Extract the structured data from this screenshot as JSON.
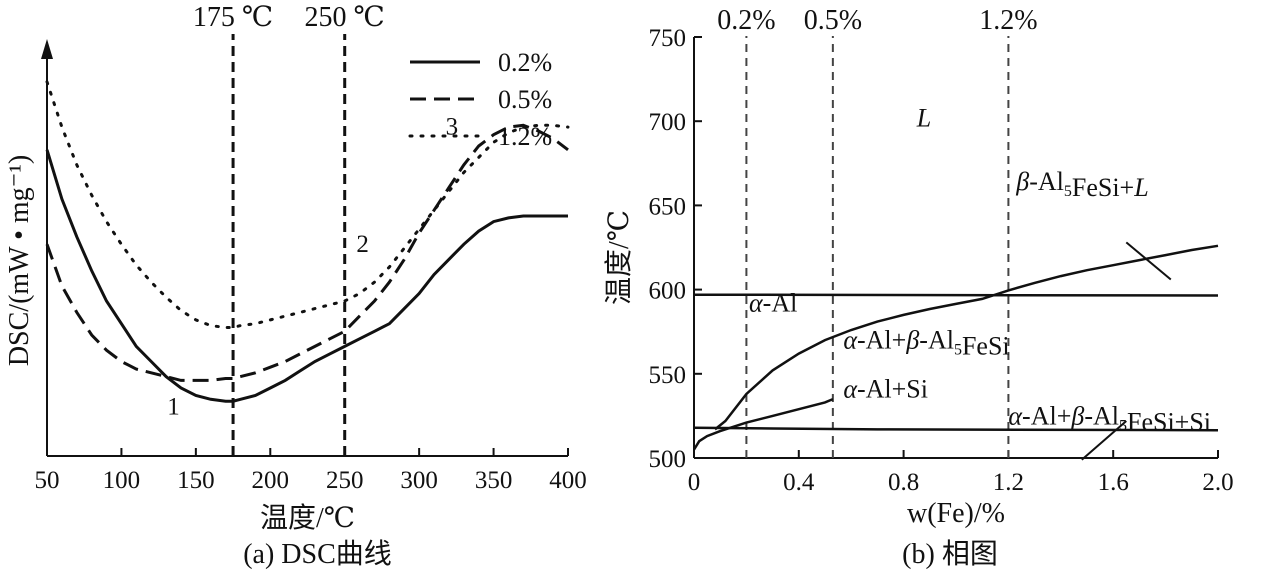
{
  "chart_data": [
    {
      "type": "line",
      "caption": "(a) DSC曲线",
      "xlabel": "温度/℃",
      "ylabel": "DSC/(mW • mg⁻¹)",
      "xlim": [
        50,
        400
      ],
      "xticks": [
        50,
        100,
        150,
        200,
        250,
        300,
        350,
        400
      ],
      "ylim": [
        0,
        100
      ],
      "y_ticks_shown": false,
      "legend_position": "top-right",
      "vlines": [
        {
          "x": 175,
          "label": "175 ℃"
        },
        {
          "x": 250,
          "label": "250 ℃"
        }
      ],
      "annotations": [
        {
          "text": "1",
          "x": 135,
          "y": 11
        },
        {
          "text": "2",
          "x": 262,
          "y": 54
        },
        {
          "text": "3",
          "x": 322,
          "y": 85
        }
      ],
      "series": [
        {
          "name": "0.2%",
          "style": "solid",
          "x": [
            50,
            60,
            70,
            80,
            90,
            100,
            110,
            120,
            130,
            140,
            150,
            160,
            170,
            175,
            180,
            190,
            200,
            210,
            220,
            230,
            240,
            250,
            260,
            270,
            280,
            290,
            300,
            310,
            320,
            330,
            340,
            350,
            360,
            370,
            380,
            390,
            400
          ],
          "y": [
            81,
            68,
            58,
            49,
            41,
            35,
            29,
            25,
            21,
            18,
            16,
            15,
            14.5,
            14.5,
            15,
            16,
            18,
            20,
            22.5,
            25,
            27,
            29,
            31,
            33,
            35,
            39,
            43,
            48,
            52,
            56,
            59.5,
            62,
            63,
            63.5,
            63.5,
            63.5,
            63.5
          ]
        },
        {
          "name": "0.5%",
          "style": "dashed",
          "x": [
            50,
            60,
            70,
            80,
            90,
            100,
            110,
            120,
            130,
            140,
            150,
            160,
            170,
            175,
            180,
            190,
            200,
            210,
            220,
            230,
            240,
            250,
            260,
            270,
            280,
            290,
            300,
            310,
            320,
            330,
            340,
            350,
            360,
            370,
            380,
            390,
            400
          ],
          "y": [
            56,
            45,
            38,
            32,
            28,
            25,
            23,
            22,
            21,
            20,
            20,
            20,
            20.5,
            20.5,
            21,
            22,
            23.5,
            25,
            27,
            29,
            31,
            33,
            37,
            41,
            46,
            52,
            59,
            65,
            71,
            77,
            82,
            85,
            87,
            87.5,
            86,
            84,
            81
          ]
        },
        {
          "name": "1.2%",
          "style": "dotted",
          "x": [
            50,
            60,
            70,
            80,
            90,
            100,
            110,
            120,
            130,
            140,
            150,
            160,
            170,
            175,
            180,
            190,
            200,
            210,
            220,
            230,
            240,
            250,
            260,
            270,
            280,
            290,
            300,
            310,
            320,
            330,
            340,
            350,
            360,
            370,
            380,
            390,
            400
          ],
          "y": [
            99,
            87,
            77,
            69,
            62,
            56,
            50.5,
            46,
            42,
            38.5,
            36,
            34.5,
            34,
            34,
            34.5,
            35,
            36,
            37,
            38,
            39,
            40,
            41,
            43,
            46,
            50,
            55,
            60,
            65,
            70,
            75,
            79,
            83,
            85.5,
            87,
            87.5,
            87.5,
            87
          ]
        }
      ]
    },
    {
      "type": "line",
      "caption": "(b) 相图",
      "xlabel": "w(Fe)/%",
      "ylabel": "温度/℃",
      "xlim": [
        0,
        2.0
      ],
      "ylim": [
        500,
        750
      ],
      "xticks": [
        0,
        0.4,
        0.8,
        1.2,
        1.6,
        2.0
      ],
      "xtick_labels": [
        "0",
        "0.4",
        "0.8",
        "1.2",
        "1.6",
        "2.0"
      ],
      "yticks": [
        500,
        550,
        600,
        650,
        700,
        750
      ],
      "vlines": [
        {
          "x": 0.2,
          "label": "0.2%"
        },
        {
          "x": 0.53,
          "label": "0.5%"
        },
        {
          "x": 1.2,
          "label": "1.2%"
        }
      ],
      "phase_lines": [
        {
          "x": [
            0,
            2.0
          ],
          "y": [
            597,
            596.5
          ]
        },
        {
          "x": [
            0,
            0.3,
            0.7,
            2.0
          ],
          "y": [
            518,
            517.5,
            517,
            516.5
          ]
        },
        {
          "x": [
            0.08,
            0.12,
            0.2,
            0.3,
            0.4,
            0.5,
            0.6,
            0.7,
            0.8,
            0.9,
            1.0,
            1.1,
            1.2,
            1.3,
            1.4,
            1.5,
            1.6,
            1.7,
            1.8,
            1.9,
            2.0
          ],
          "y": [
            517,
            522,
            538,
            552,
            562,
            570,
            576,
            581,
            585,
            588.5,
            591.5,
            594.5,
            599.5,
            604,
            608,
            611.5,
            614.5,
            617.5,
            620.5,
            623.5,
            626
          ]
        },
        {
          "x": [
            0,
            0.02,
            0.05,
            0.1,
            0.15,
            0.2,
            0.3,
            0.4,
            0.5,
            0.53
          ],
          "y": [
            505,
            510,
            513,
            516,
            518.5,
            521,
            525,
            529,
            533,
            535
          ]
        }
      ],
      "phase_labels": [
        {
          "text": "L",
          "x": 0.85,
          "y": 697
        },
        {
          "text": "β-Al5FeSi+L",
          "x": 1.23,
          "y": 659
        },
        {
          "text": "α-Al",
          "x": 0.21,
          "y": 587
        },
        {
          "text": "α-Al+β-Al5FeSi",
          "x": 0.57,
          "y": 565
        },
        {
          "text": "α-Al+Si",
          "x": 0.57,
          "y": 536
        },
        {
          "text": "α-Al+β-Al5FeSi+Si",
          "x": 1.2,
          "y": 520
        }
      ],
      "leader_lines": [
        {
          "x": [
            1.65,
            1.82
          ],
          "y": [
            628,
            606
          ]
        },
        {
          "x": [
            1.48,
            1.65
          ],
          "y": [
            499,
            522
          ]
        }
      ]
    }
  ]
}
